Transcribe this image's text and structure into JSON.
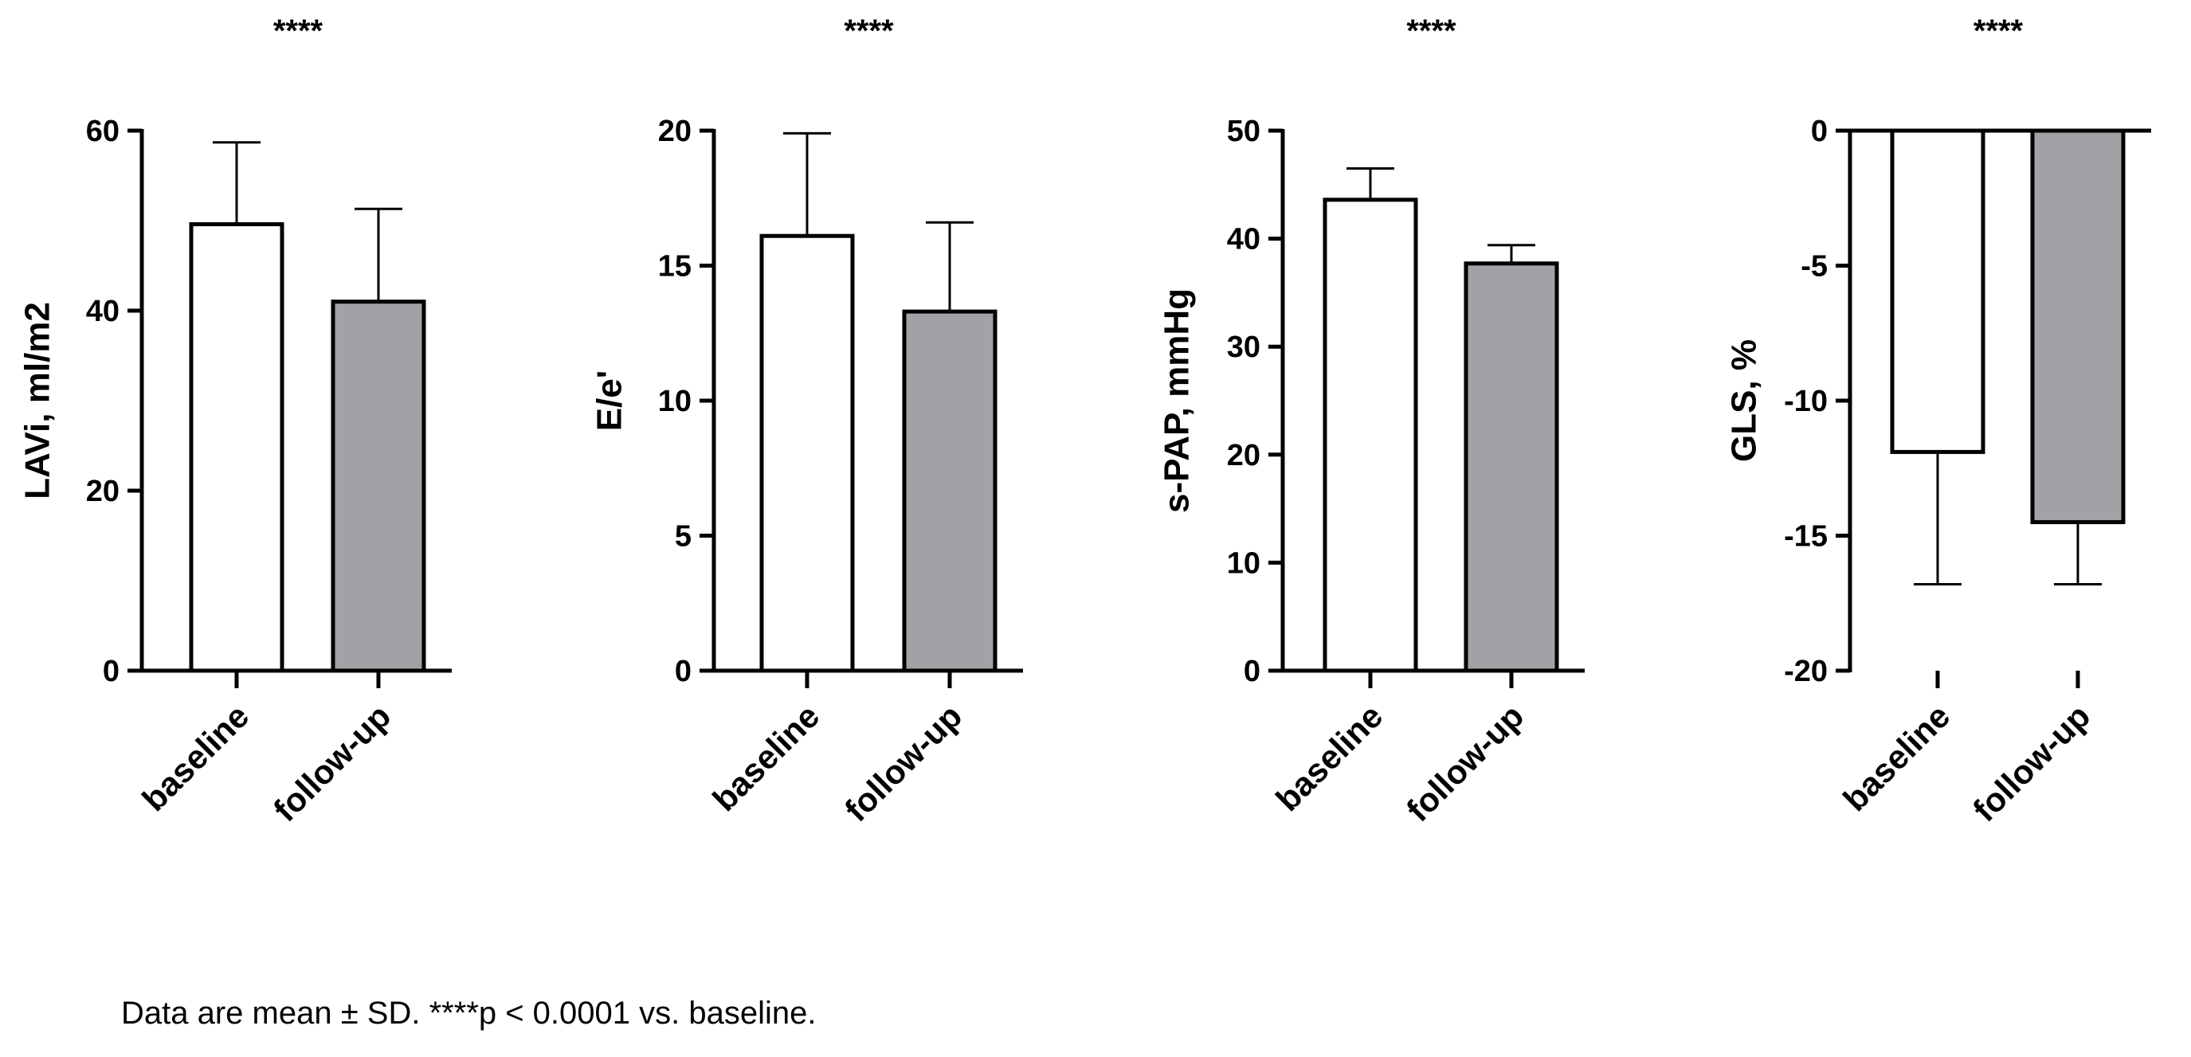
{
  "colors": {
    "baseline_fill": "#ffffff",
    "followup_fill": "#a2a1a6",
    "stroke": "#000000"
  },
  "footnote": "Data are mean ± SD. ****p < 0.0001 vs. baseline.",
  "chart_data": [
    {
      "type": "bar",
      "categories": [
        "baseline",
        "follow-up"
      ],
      "values": [
        49.6,
        41.0
      ],
      "errors": [
        9.1,
        10.3
      ],
      "ylabel": "LAVi, ml/m2",
      "ylim": [
        0,
        60
      ],
      "yticks": [
        0,
        20,
        40,
        60
      ],
      "significance": "****",
      "grid": false
    },
    {
      "type": "bar",
      "categories": [
        "baseline",
        "follow-up"
      ],
      "values": [
        16.1,
        13.3
      ],
      "errors": [
        3.8,
        3.3
      ],
      "ylabel": "E/e'",
      "ylim": [
        0,
        20
      ],
      "yticks": [
        0,
        5,
        10,
        15,
        20
      ],
      "significance": "****",
      "grid": false
    },
    {
      "type": "bar",
      "categories": [
        "baseline",
        "follow-up"
      ],
      "values": [
        43.6,
        37.7
      ],
      "errors": [
        2.9,
        1.7
      ],
      "ylabel": "s-PAP, mmHg",
      "ylim": [
        0,
        50
      ],
      "yticks": [
        0,
        10,
        20,
        30,
        40,
        50
      ],
      "significance": "****",
      "grid": false
    },
    {
      "type": "bar",
      "categories": [
        "baseline",
        "follow-up"
      ],
      "values": [
        -11.9,
        -14.5
      ],
      "errors": [
        4.9,
        2.3
      ],
      "ylabel": "GLS, %",
      "ylim": [
        -20,
        0
      ],
      "yticks": [
        -20,
        -15,
        -10,
        -5,
        0
      ],
      "significance": "****",
      "grid": false
    }
  ]
}
